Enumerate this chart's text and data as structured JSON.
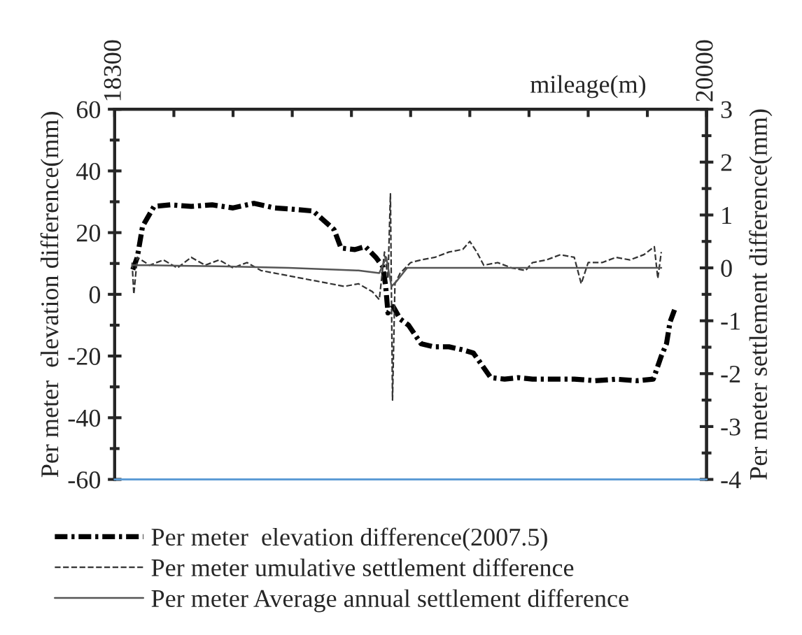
{
  "chart_data": {
    "type": "line",
    "xlabel": "mileage(m)",
    "ylabel": "Per meter  elevation difference(mm)",
    "y2label": "Per meter settlement difference(mm)",
    "xlim": [
      18300,
      20000
    ],
    "xticks": [
      18300,
      {
        "value": 18470,
        "label": null
      },
      {
        "value": 18640,
        "label": null
      },
      {
        "value": 18810,
        "label": null
      },
      {
        "value": 18980,
        "label": null
      },
      {
        "value": 19150,
        "label": null
      },
      {
        "value": 19320,
        "label": null
      },
      {
        "value": 19490,
        "label": null
      },
      {
        "value": 19660,
        "label": null
      },
      {
        "value": 19830,
        "label": null
      },
      20000
    ],
    "ylim": [
      -60,
      60
    ],
    "yticks": [
      -60,
      -40,
      -20,
      0,
      20,
      40,
      60
    ],
    "y2lim": [
      -4,
      3
    ],
    "y2ticks": [
      -4,
      -3,
      -2,
      -1,
      0,
      1,
      2,
      3
    ],
    "grid": false,
    "legend": "bottom",
    "marker": "none",
    "series": [
      {
        "name": "Per meter  elevation difference(2007.5)",
        "color": "#000000",
        "line_style": "dashdot",
        "x": [
          18352,
          18365,
          18380,
          18413,
          18460,
          18520,
          18580,
          18640,
          18700,
          18760,
          18820,
          18870,
          18900,
          18930,
          18950,
          18990,
          19020,
          19050,
          19070,
          19078,
          19085,
          19100,
          19120,
          19144,
          19180,
          19216,
          19260,
          19300,
          19330,
          19349,
          19380,
          19420,
          19460,
          19500,
          19560,
          19620,
          19680,
          19740,
          19800,
          19847,
          19870,
          19885,
          19895,
          19908
        ],
        "values": [
          8,
          12,
          22,
          28.5,
          29,
          28.5,
          29,
          28,
          29.5,
          28,
          27.5,
          27,
          24,
          21,
          15,
          14.5,
          15.5,
          12,
          9,
          3,
          -6,
          -4,
          -8,
          -10,
          -16,
          -17,
          -17,
          -18,
          -19,
          -22,
          -27,
          -27.5,
          -27,
          -27.5,
          -27.5,
          -27.5,
          -28,
          -27.5,
          -28,
          -27.5,
          -20,
          -16,
          -9,
          -5
        ]
      },
      {
        "name": "Per meter umulative settlement difference",
        "color": "#333333",
        "line_style": "dashed",
        "axis": "y2",
        "x": [
          18350,
          18355,
          18365,
          18400,
          18440,
          18480,
          18520,
          18560,
          18600,
          18640,
          18680,
          18720,
          18760,
          18800,
          18840,
          18880,
          18920,
          18960,
          19000,
          19040,
          19060,
          19075,
          19085,
          19092,
          19098,
          19105,
          19120,
          19150,
          19180,
          19220,
          19260,
          19300,
          19320,
          19340,
          19360,
          19400,
          19440,
          19480,
          19500,
          19540,
          19580,
          19620,
          19640,
          19660,
          19700,
          19740,
          19780,
          19820,
          19850,
          19860,
          19870
        ],
        "values": [
          0.1,
          -0.5,
          0.2,
          0.05,
          0.15,
          0.0,
          0.2,
          0.05,
          0.15,
          0.0,
          0.1,
          -0.05,
          -0.1,
          -0.15,
          -0.2,
          -0.25,
          -0.3,
          -0.35,
          -0.3,
          -0.45,
          -0.6,
          0.3,
          -0.2,
          1.4,
          -2.5,
          -0.3,
          -0.1,
          0.1,
          0.15,
          0.2,
          0.3,
          0.35,
          0.5,
          0.3,
          0.05,
          0.1,
          0.0,
          -0.05,
          0.1,
          0.15,
          0.25,
          0.2,
          -0.3,
          0.1,
          0.1,
          0.2,
          0.15,
          0.25,
          0.4,
          -0.2,
          0.3
        ]
      },
      {
        "name": "Per meter Average annual settlement difference",
        "color": "#555555",
        "line_style": "solid",
        "axis": "y2",
        "x": [
          18350,
          18400,
          18600,
          18800,
          19000,
          19060,
          19080,
          19095,
          19110,
          19140,
          19300,
          19600,
          19870
        ],
        "values": [
          0.05,
          0.05,
          0.03,
          0.0,
          -0.05,
          -0.1,
          0.2,
          -0.35,
          -0.25,
          0.0,
          0.0,
          0.0,
          0.0
        ]
      }
    ]
  }
}
